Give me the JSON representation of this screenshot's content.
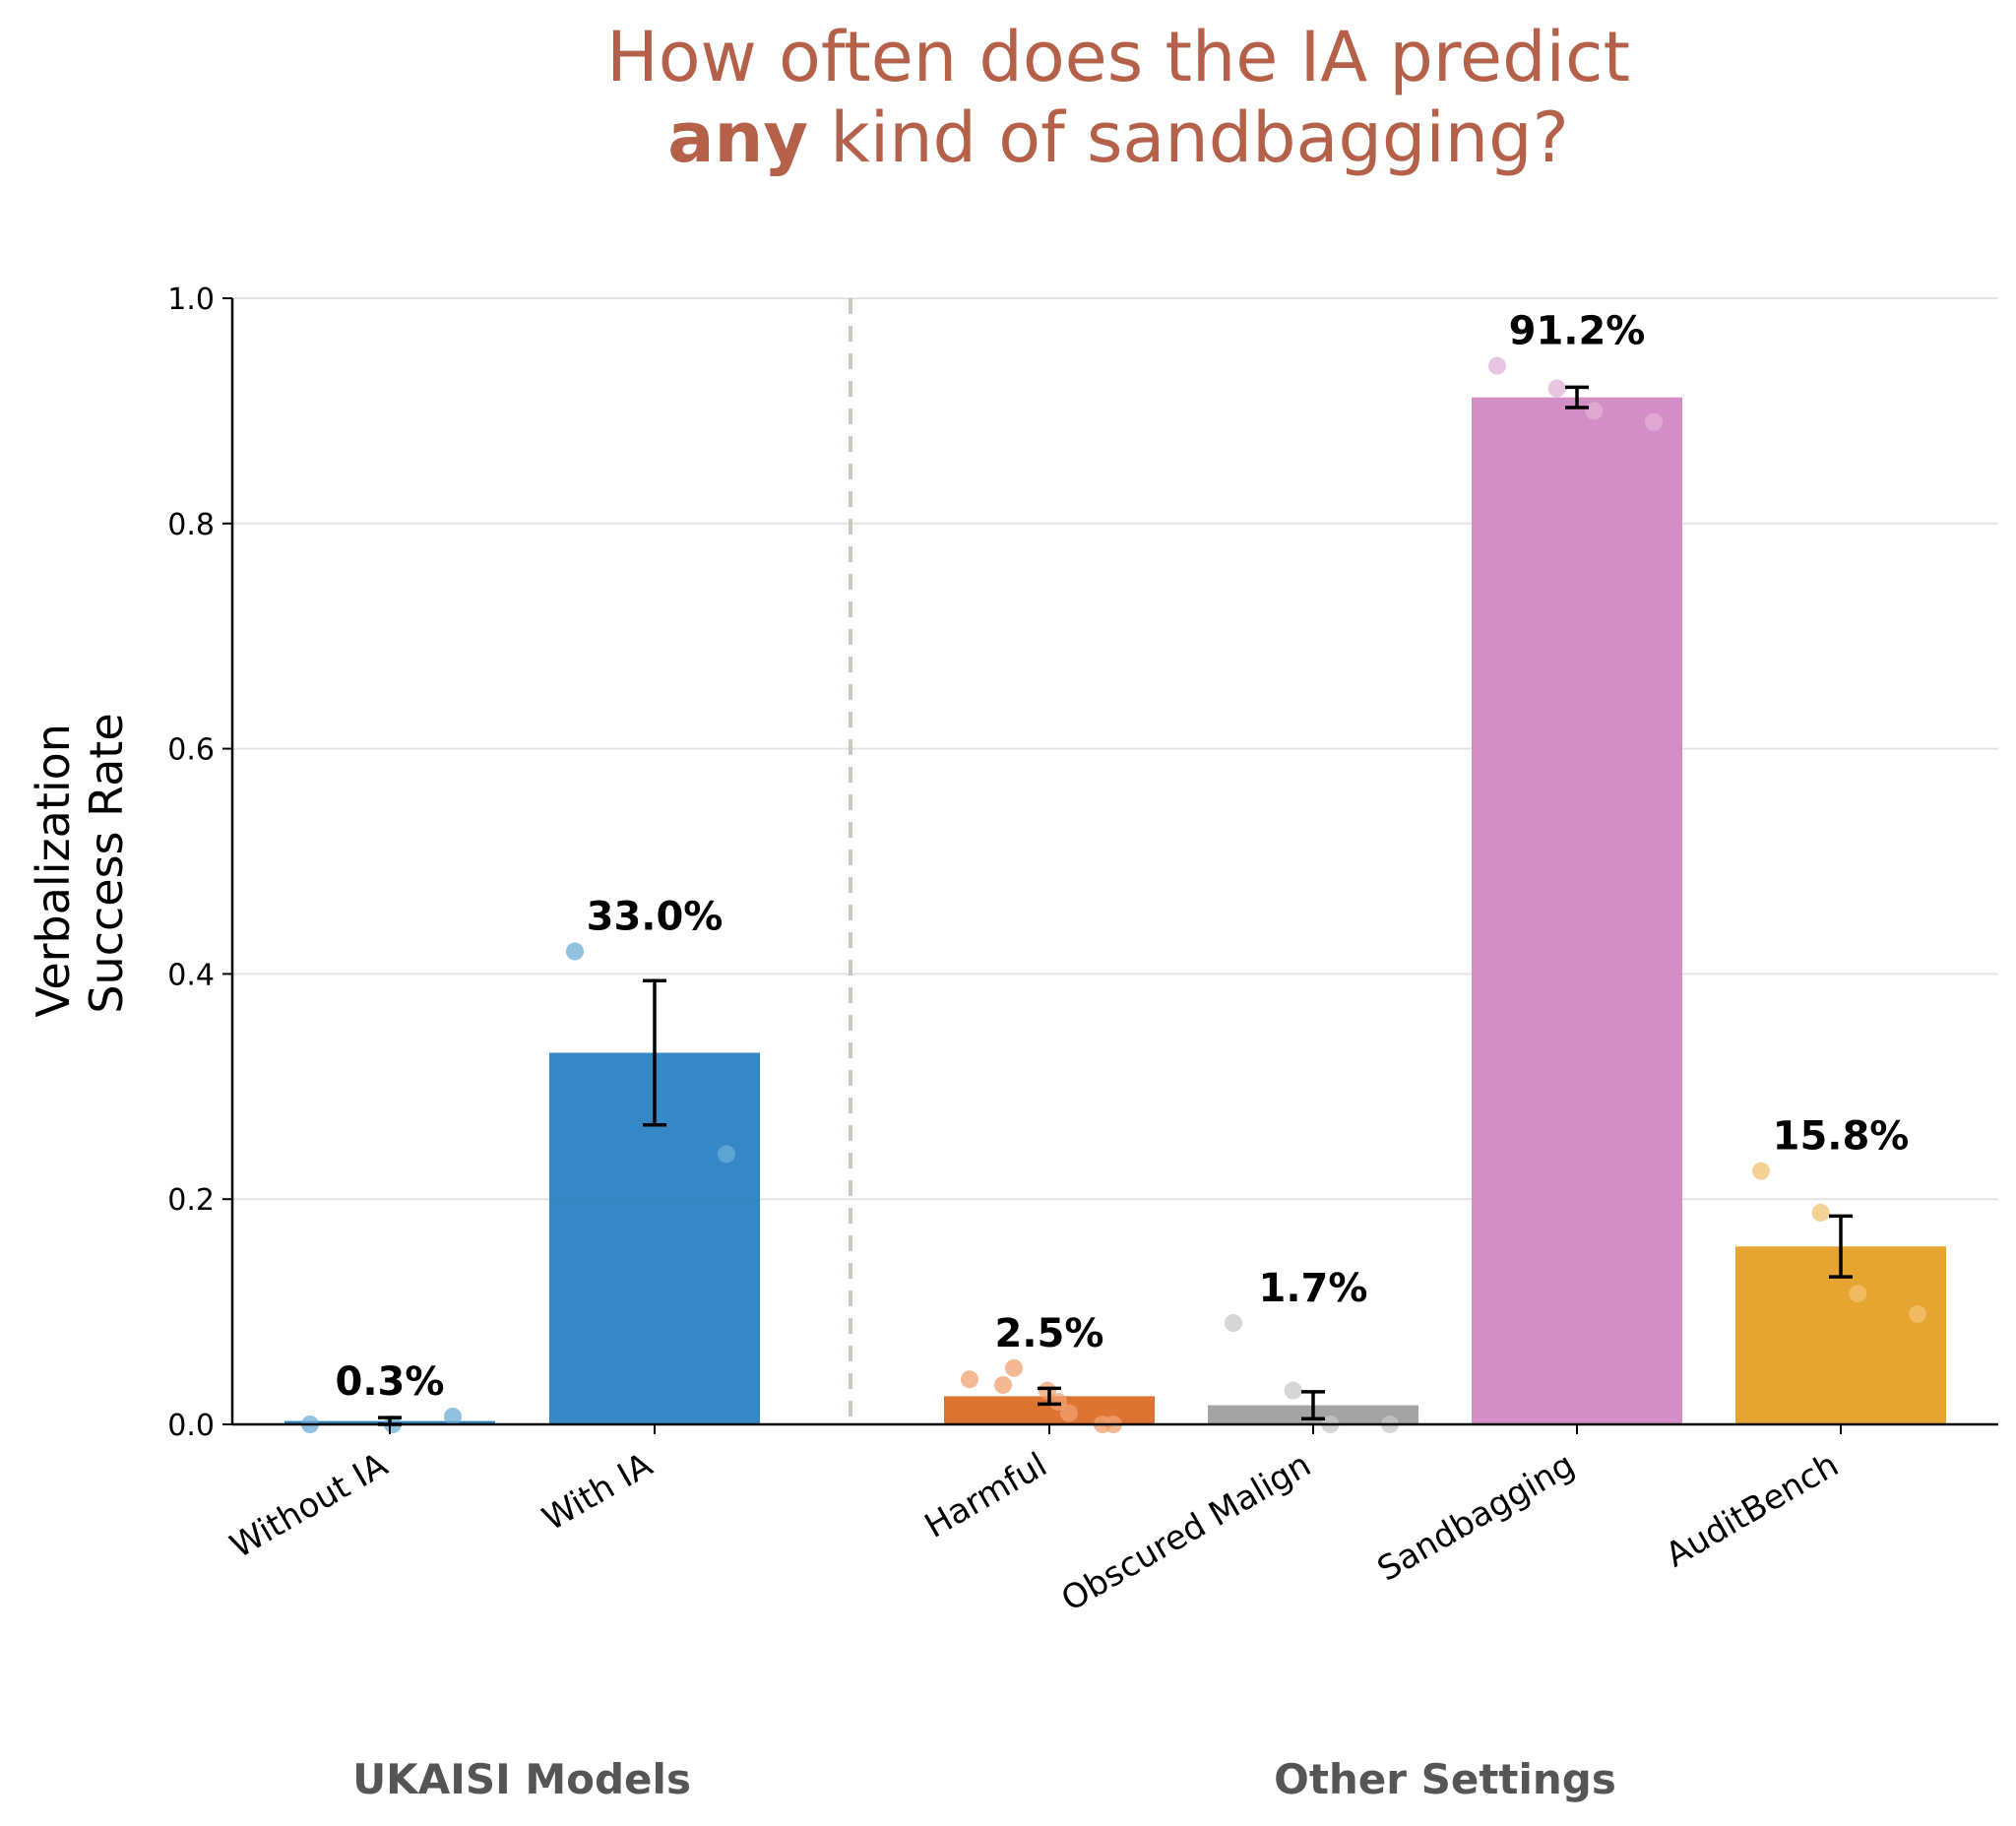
{
  "chart_data": {
    "type": "bar",
    "title_line1": "How often does the IA predict",
    "title_line2_bold": "any",
    "title_line2_rest": " kind of sandbagging?",
    "ylabel_line1": "Verbalization",
    "ylabel_line2": "Success Rate",
    "ylim": [
      0,
      1.0
    ],
    "yticks": [
      {
        "value": 0.0,
        "label": "0.0"
      },
      {
        "value": 0.2,
        "label": "0.2"
      },
      {
        "value": 0.4,
        "label": "0.4"
      },
      {
        "value": 0.6,
        "label": "0.6"
      },
      {
        "value": 0.8,
        "label": "0.8"
      },
      {
        "value": 1.0,
        "label": "1.0"
      }
    ],
    "grid": "horizontal",
    "groups": [
      {
        "label": "UKAISI Models",
        "categories": [
          "Without IA",
          "With IA"
        ]
      },
      {
        "label": "Other Settings",
        "categories": [
          "Harmful",
          "Obscured Malign",
          "Sandbagging",
          "AuditBench"
        ]
      }
    ],
    "bars": [
      {
        "category": "Without IA",
        "value": 0.003,
        "label": "0.3%",
        "err_low": 0.0,
        "err_high": 0.006,
        "color": "#1f7bbf",
        "dot_color": "#6baed6",
        "points": [
          0.0,
          0.0,
          0.007
        ]
      },
      {
        "category": "With IA",
        "value": 0.33,
        "label": "33.0%",
        "err_low": 0.266,
        "err_high": 0.394,
        "color": "#1f7bbf",
        "dot_color": "#6baed6",
        "points": [
          0.42,
          0.24
        ]
      },
      {
        "category": "Harmful",
        "value": 0.025,
        "label": "2.5%",
        "err_low": 0.018,
        "err_high": 0.032,
        "color": "#d9651c",
        "dot_color": "#f0a070",
        "points": [
          0.04,
          0.035,
          0.05,
          0.03,
          0.02,
          0.01,
          0.0,
          0.0
        ]
      },
      {
        "category": "Obscured Malign",
        "value": 0.017,
        "label": "1.7%",
        "err_low": 0.005,
        "err_high": 0.029,
        "color": "#9a9a9a",
        "dot_color": "#c8c8c8",
        "points": [
          0.09,
          0.03,
          0.0,
          0.0
        ]
      },
      {
        "category": "Sandbagging",
        "value": 0.912,
        "label": "91.2%",
        "err_low": 0.903,
        "err_high": 0.921,
        "color": "#cf82c0",
        "dot_color": "#e2b0d6",
        "points": [
          0.94,
          0.92,
          0.9,
          0.89
        ]
      },
      {
        "category": "AuditBench",
        "value": 0.158,
        "label": "15.8%",
        "err_low": 0.131,
        "err_high": 0.185,
        "color": "#e29b1a",
        "dot_color": "#f2c272",
        "points": [
          0.225,
          0.188,
          0.116,
          0.098
        ]
      }
    ]
  }
}
